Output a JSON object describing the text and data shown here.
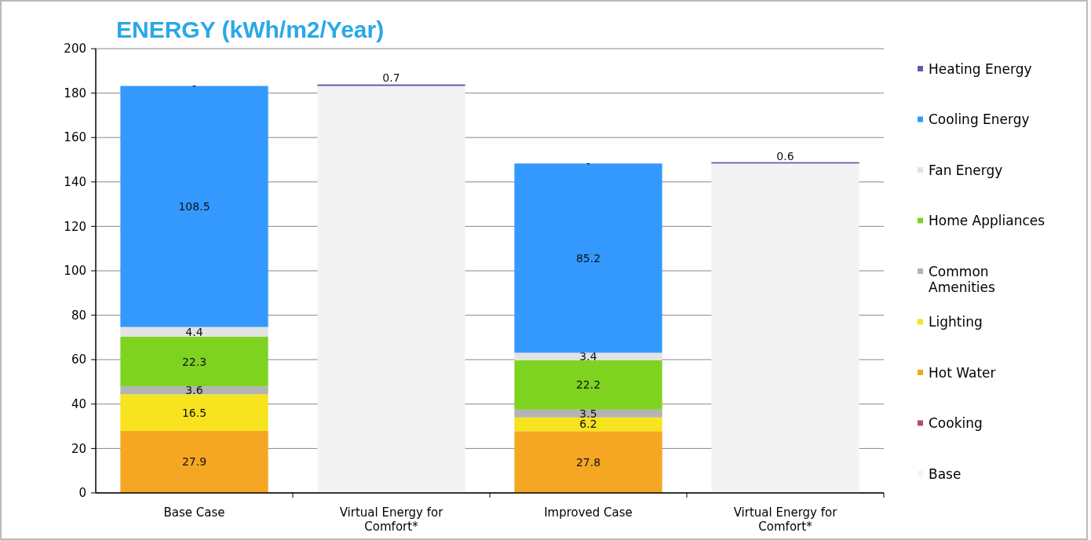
{
  "chart_data": {
    "type": "bar",
    "title": "ENERGY (kWh/m2/Year)",
    "stacked": true,
    "categories": [
      "Base Case",
      "Virtual Energy for Comfort*",
      "Improved Case",
      "Virtual Energy for Comfort*"
    ],
    "series": [
      {
        "name": "Base",
        "color": "#f3f3f3",
        "values": [
          null,
          183.2,
          null,
          148.3
        ]
      },
      {
        "name": "Cooking",
        "color": "#b04a78",
        "values": [
          0,
          null,
          0,
          null
        ]
      },
      {
        "name": "Hot Water",
        "color": "#f5a623",
        "values": [
          27.9,
          null,
          27.8,
          null
        ],
        "value_labels": [
          "27.9",
          null,
          "27.8",
          null
        ]
      },
      {
        "name": "Lighting",
        "color": "#f7e31e",
        "values": [
          16.5,
          null,
          6.2,
          null
        ],
        "value_labels": [
          "16.5",
          null,
          "6.2",
          null
        ]
      },
      {
        "name": "Common Amenities",
        "color": "#b3b3b3",
        "values": [
          3.6,
          null,
          3.5,
          null
        ],
        "value_labels": [
          "3.6",
          null,
          "3.5",
          null
        ]
      },
      {
        "name": "Home Appliances",
        "color": "#7ed321",
        "values": [
          22.3,
          null,
          22.2,
          null
        ],
        "value_labels": [
          "22.3",
          null,
          "22.2",
          null
        ]
      },
      {
        "name": "Fan Energy",
        "color": "#e3e3e3",
        "values": [
          4.4,
          null,
          3.4,
          null
        ],
        "value_labels": [
          "4.4",
          null,
          "3.4",
          null
        ]
      },
      {
        "name": "Cooling Energy",
        "color": "#3399ff",
        "values": [
          108.5,
          null,
          85.2,
          null
        ],
        "value_labels": [
          "108.5",
          null,
          "85.2",
          null
        ]
      },
      {
        "name": "Heating Energy",
        "color": "#6655aa",
        "values": [
          0,
          0.7,
          0,
          0.6
        ],
        "value_labels": [
          "-",
          "0.7",
          "-",
          "0.6"
        ]
      }
    ],
    "ylim": [
      0,
      200
    ],
    "yticks": [
      0,
      20,
      40,
      60,
      80,
      100,
      120,
      140,
      160,
      180,
      200
    ],
    "grid": "y",
    "legend": "right"
  }
}
